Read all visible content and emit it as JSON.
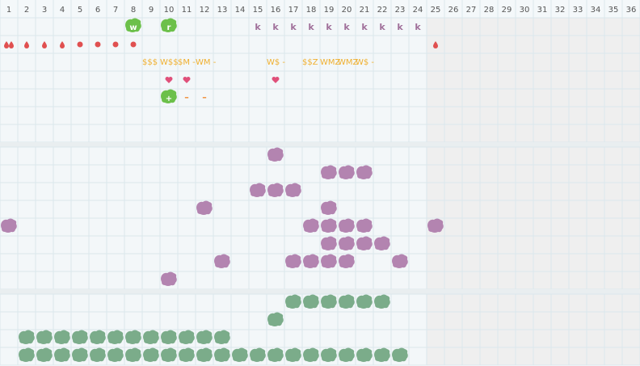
{
  "columns": [
    1,
    2,
    3,
    4,
    5,
    6,
    7,
    8,
    9,
    10,
    11,
    12,
    13,
    14,
    15,
    16,
    17,
    18,
    19,
    20,
    21,
    22,
    23,
    24,
    25,
    26,
    27,
    28,
    29,
    30,
    31,
    32,
    33,
    34,
    35,
    36
  ],
  "top": {
    "badges": [
      {
        "day": 8,
        "label": "w"
      },
      {
        "day": 10,
        "label": "r"
      }
    ],
    "k_marks": {
      "label": "k",
      "days": [
        15,
        16,
        17,
        18,
        19,
        20,
        21,
        22,
        23,
        24
      ]
    },
    "double_drops": [
      1
    ],
    "drops": [
      2,
      3,
      4,
      25
    ],
    "dots": [
      5,
      6,
      7,
      8
    ],
    "texts": [
      {
        "day": 9,
        "label": "$$$"
      },
      {
        "day": 10,
        "label": "W$$"
      },
      {
        "day": 11,
        "label": "$M -"
      },
      {
        "day": 12,
        "label": "WM -"
      },
      {
        "day": 16,
        "label": "W$ -"
      },
      {
        "day": 18,
        "label": "$$Z"
      },
      {
        "day": 19,
        "label": "WMZ"
      },
      {
        "day": 20,
        "label": "WMZ"
      },
      {
        "day": 21,
        "label": "W$ -"
      }
    ],
    "hearts": [
      10,
      11,
      16
    ],
    "plus_badges": [
      {
        "day": 10,
        "label": "+"
      }
    ],
    "dashes": [
      {
        "day": 11,
        "label": "–"
      },
      {
        "day": 12,
        "label": "–"
      }
    ]
  },
  "middle": [
    [
      16
    ],
    [
      19,
      20,
      21
    ],
    [
      15,
      16,
      17
    ],
    [
      12,
      19
    ],
    [
      1,
      18,
      19,
      20,
      21,
      25
    ],
    [
      19,
      20,
      21,
      22
    ],
    [
      13,
      17,
      18,
      19,
      20,
      23
    ],
    [
      10
    ]
  ],
  "bottom": [
    [
      17,
      18,
      19,
      20,
      21,
      22
    ],
    [
      16
    ],
    [
      2,
      3,
      4,
      5,
      6,
      7,
      8,
      9,
      10,
      11,
      12,
      13
    ],
    [
      2,
      3,
      4,
      5,
      6,
      7,
      8,
      9,
      10,
      11,
      12,
      13,
      14,
      15,
      16,
      17,
      18,
      19,
      20,
      21,
      22,
      23
    ]
  ]
}
